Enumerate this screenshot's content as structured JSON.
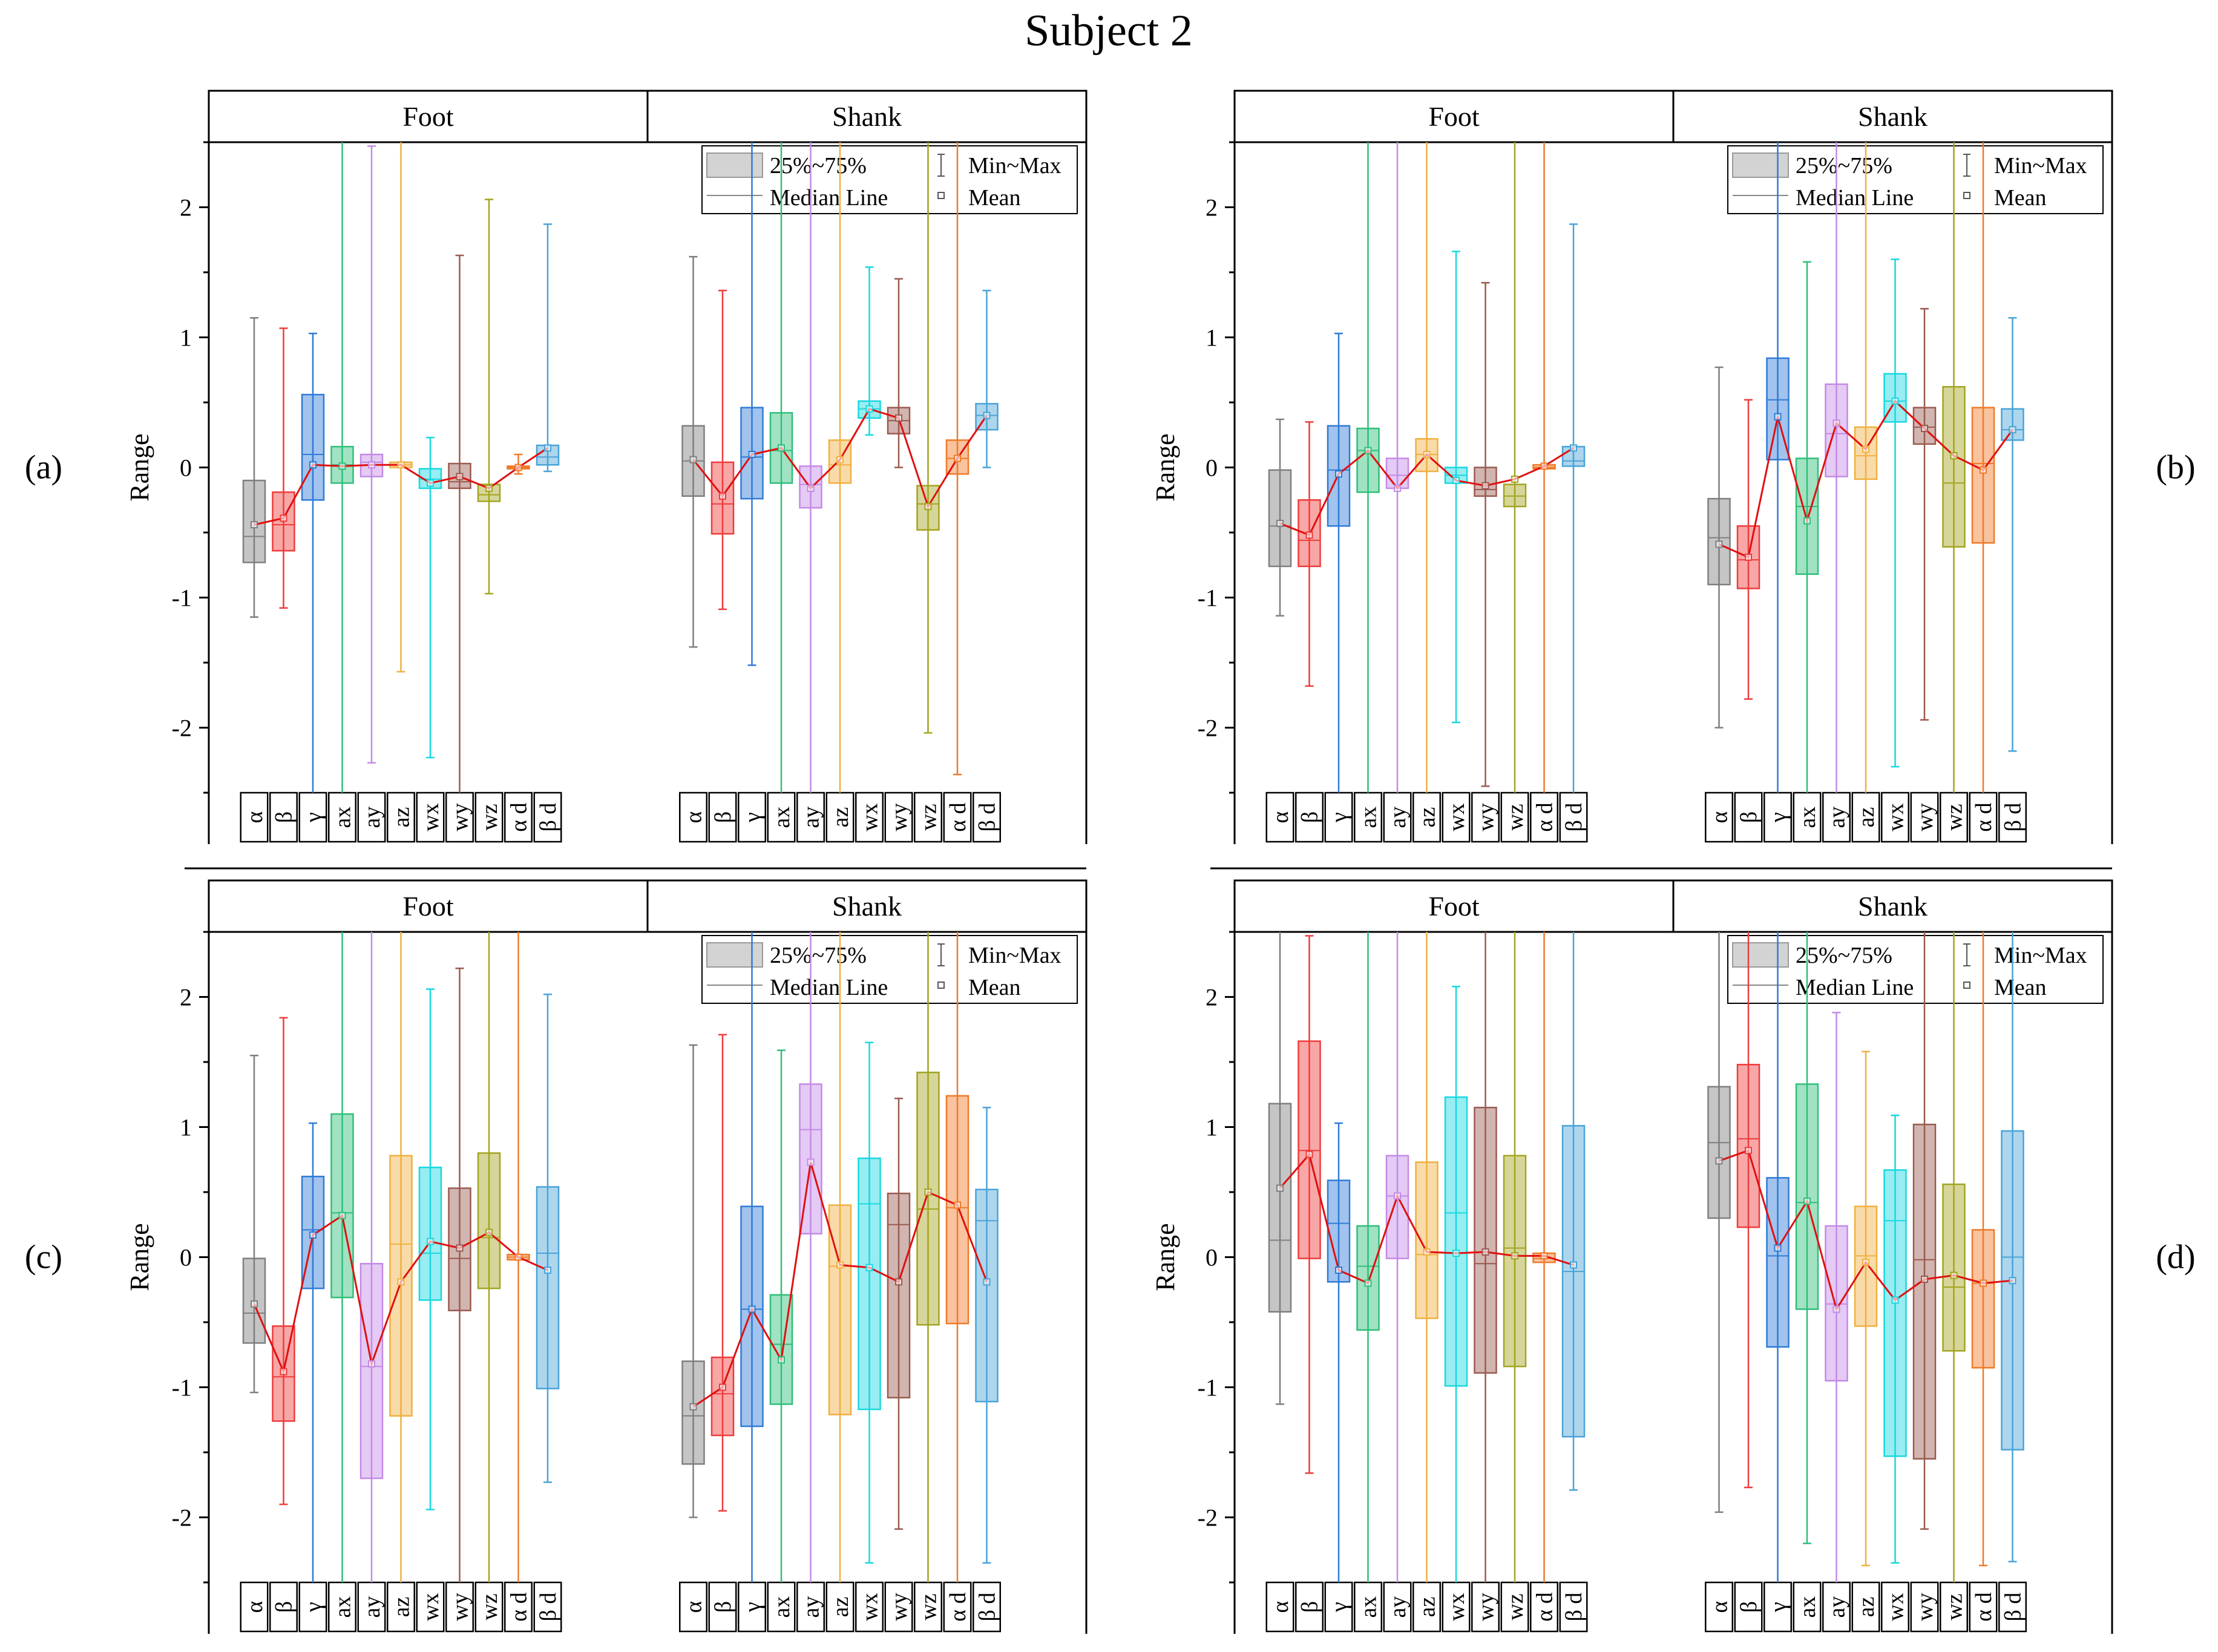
{
  "title": "Subject 2",
  "colors": {
    "alpha": "#7f7f7f",
    "beta": "#ef3b3b",
    "gamma": "#2f7bd6",
    "ax": "#2fbf7a",
    "ay": "#c48ae6",
    "az": "#f0b040",
    "wx": "#18d8e0",
    "wy": "#9a5a50",
    "wz": "#a3a420",
    "ad": "#f07a28",
    "bd": "#4aa3d8",
    "mean_line": "#e01010"
  },
  "chart_data": [
    {
      "id": "a",
      "panel_label": "(a)",
      "type": "box",
      "ylabel": "Range",
      "ylim": [
        -2.5,
        2.5
      ],
      "yticks": [
        -2,
        -1,
        0,
        1,
        2
      ],
      "groups": [
        "Foot",
        "Shank"
      ],
      "categories": [
        "α",
        "β",
        "γ",
        "ax",
        "ay",
        "az",
        "wx",
        "wy",
        "wz",
        "α d",
        "β d"
      ],
      "legend": {
        "box": "25%~75%",
        "whisker": "Min~Max",
        "median": "Median Line",
        "mean": "Mean"
      },
      "series": [
        {
          "group": "Foot",
          "q1": [
            -0.73,
            -0.64,
            -0.25,
            -0.12,
            -0.07,
            0.0,
            -0.16,
            -0.16,
            -0.26,
            -0.01,
            0.02
          ],
          "median": [
            -0.53,
            -0.44,
            0.1,
            0.02,
            0.04,
            0.02,
            -0.09,
            -0.11,
            -0.21,
            0.0,
            0.08
          ],
          "q3": [
            -0.1,
            -0.19,
            0.56,
            0.16,
            0.1,
            0.04,
            -0.01,
            0.03,
            -0.13,
            0.01,
            0.17
          ],
          "min": [
            -1.15,
            -1.08,
            -2.5,
            -2.5,
            -2.27,
            -1.57,
            -2.23,
            -2.5,
            -0.97,
            -0.05,
            -0.03
          ],
          "max": [
            1.15,
            1.07,
            1.03,
            2.5,
            2.47,
            2.5,
            0.23,
            1.63,
            2.06,
            0.1,
            1.87
          ],
          "mean": [
            -0.44,
            -0.39,
            0.02,
            0.01,
            0.02,
            0.02,
            -0.12,
            -0.07,
            -0.16,
            0.0,
            0.15
          ]
        },
        {
          "group": "Shank",
          "q1": [
            -0.22,
            -0.51,
            -0.24,
            -0.12,
            -0.31,
            -0.12,
            0.38,
            0.26,
            -0.48,
            -0.05,
            0.29
          ],
          "median": [
            0.05,
            -0.28,
            0.08,
            0.13,
            -0.13,
            0.02,
            0.45,
            0.36,
            -0.28,
            0.07,
            0.4
          ],
          "q3": [
            0.32,
            0.04,
            0.46,
            0.42,
            0.01,
            0.21,
            0.51,
            0.46,
            -0.14,
            0.21,
            0.49
          ],
          "min": [
            -1.38,
            -1.09,
            -1.52,
            -2.5,
            -2.5,
            -2.5,
            0.25,
            0.0,
            -2.04,
            -2.36,
            0.0
          ],
          "max": [
            1.62,
            1.36,
            2.5,
            2.5,
            2.5,
            2.5,
            1.54,
            1.45,
            2.5,
            2.5,
            1.36
          ],
          "mean": [
            0.06,
            -0.22,
            0.1,
            0.15,
            -0.16,
            0.06,
            0.45,
            0.38,
            -0.3,
            0.07,
            0.4
          ]
        }
      ]
    },
    {
      "id": "b",
      "panel_label": "(b)",
      "type": "box",
      "ylabel": "Range",
      "ylim": [
        -2.5,
        2.5
      ],
      "yticks": [
        -2,
        -1,
        0,
        1,
        2
      ],
      "groups": [
        "Foot",
        "Shank"
      ],
      "categories": [
        "α",
        "β",
        "γ",
        "ax",
        "ay",
        "az",
        "wx",
        "wy",
        "wz",
        "α d",
        "β d"
      ],
      "legend": {
        "box": "25%~75%",
        "whisker": "Min~Max",
        "median": "Median Line",
        "mean": "Mean"
      },
      "series": [
        {
          "group": "Foot",
          "q1": [
            -0.76,
            -0.76,
            -0.45,
            -0.19,
            -0.16,
            -0.03,
            -0.12,
            -0.22,
            -0.3,
            -0.01,
            0.01
          ],
          "median": [
            -0.45,
            -0.56,
            -0.02,
            0.13,
            -0.06,
            0.1,
            -0.06,
            -0.17,
            -0.22,
            0.0,
            0.05
          ],
          "q3": [
            -0.02,
            -0.25,
            0.32,
            0.3,
            0.07,
            0.22,
            0.0,
            0.0,
            -0.13,
            0.02,
            0.16
          ],
          "min": [
            -1.14,
            -1.68,
            -2.5,
            -2.5,
            -2.5,
            -2.5,
            -1.96,
            -2.45,
            -2.5,
            -2.5,
            -2.5
          ],
          "max": [
            0.37,
            0.35,
            1.03,
            2.5,
            2.5,
            2.5,
            1.66,
            1.42,
            2.5,
            2.5,
            1.87
          ],
          "mean": [
            -0.43,
            -0.52,
            -0.05,
            0.13,
            -0.16,
            0.1,
            -0.1,
            -0.14,
            -0.09,
            0.01,
            0.15
          ]
        },
        {
          "group": "Shank",
          "q1": [
            -0.9,
            -0.93,
            0.06,
            -0.82,
            -0.07,
            -0.09,
            0.35,
            0.18,
            -0.61,
            -0.58,
            0.21
          ],
          "median": [
            -0.54,
            -0.71,
            0.52,
            -0.3,
            0.26,
            0.09,
            0.51,
            0.31,
            -0.12,
            0.03,
            0.29
          ],
          "q3": [
            -0.24,
            -0.45,
            0.84,
            0.07,
            0.64,
            0.31,
            0.72,
            0.46,
            0.62,
            0.46,
            0.45
          ],
          "min": [
            -2.0,
            -1.78,
            -2.5,
            -2.5,
            -2.5,
            -2.5,
            -2.3,
            -1.94,
            -2.5,
            -2.5,
            -2.18
          ],
          "max": [
            0.77,
            0.52,
            2.5,
            1.58,
            2.5,
            2.5,
            1.6,
            1.22,
            2.5,
            2.5,
            1.15
          ],
          "mean": [
            -0.59,
            -0.69,
            0.39,
            -0.41,
            0.34,
            0.14,
            0.51,
            0.3,
            0.09,
            -0.02,
            0.29
          ]
        }
      ]
    },
    {
      "id": "c",
      "panel_label": "(c)",
      "type": "box",
      "ylabel": "Range",
      "ylim": [
        -2.5,
        2.5
      ],
      "yticks": [
        -2,
        -1,
        0,
        1,
        2
      ],
      "groups": [
        "Foot",
        "Shank"
      ],
      "categories": [
        "α",
        "β",
        "γ",
        "ax",
        "ay",
        "az",
        "wx",
        "wy",
        "wz",
        "α d",
        "β d"
      ],
      "legend": {
        "box": "25%~75%",
        "whisker": "Min~Max",
        "median": "Median Line",
        "mean": "Mean"
      },
      "series": [
        {
          "group": "Foot",
          "q1": [
            -0.66,
            -1.26,
            -0.24,
            -0.31,
            -1.7,
            -1.22,
            -0.33,
            -0.41,
            -0.24,
            -0.02,
            -1.01
          ],
          "median": [
            -0.43,
            -0.92,
            0.21,
            0.34,
            -0.84,
            0.1,
            0.03,
            -0.01,
            0.15,
            0.0,
            0.03
          ],
          "q3": [
            -0.01,
            -0.53,
            0.62,
            1.1,
            -0.05,
            0.78,
            0.69,
            0.53,
            0.8,
            0.02,
            0.54
          ],
          "min": [
            -1.04,
            -1.9,
            -2.5,
            -2.5,
            -2.5,
            -2.5,
            -1.94,
            -2.5,
            -2.5,
            -2.5,
            -1.73
          ],
          "max": [
            1.55,
            1.84,
            1.03,
            2.5,
            2.5,
            2.5,
            2.06,
            2.22,
            2.5,
            2.5,
            2.02
          ],
          "mean": [
            -0.36,
            -0.88,
            0.17,
            0.32,
            -0.82,
            -0.19,
            0.12,
            0.07,
            0.19,
            0.0,
            -0.1
          ]
        },
        {
          "group": "Shank",
          "q1": [
            -1.59,
            -1.37,
            -1.3,
            -1.13,
            0.18,
            -1.21,
            -1.17,
            -1.08,
            -0.52,
            -0.51,
            -1.11
          ],
          "median": [
            -1.22,
            -1.05,
            -0.4,
            -0.67,
            0.98,
            -0.07,
            0.41,
            0.25,
            0.37,
            0.38,
            0.28
          ],
          "q3": [
            -0.8,
            -0.77,
            0.39,
            -0.29,
            1.33,
            0.4,
            0.76,
            0.49,
            1.42,
            1.24,
            0.52
          ],
          "min": [
            -2.0,
            -1.95,
            -2.5,
            -2.5,
            -2.5,
            -2.5,
            -2.35,
            -2.09,
            -2.5,
            -2.5,
            -2.35
          ],
          "max": [
            1.63,
            1.71,
            2.5,
            1.59,
            2.5,
            2.5,
            1.65,
            1.22,
            2.5,
            2.5,
            1.15
          ],
          "mean": [
            -1.15,
            -1.0,
            -0.4,
            -0.79,
            0.73,
            -0.06,
            -0.08,
            -0.19,
            0.5,
            0.4,
            -0.19
          ]
        }
      ]
    },
    {
      "id": "d",
      "panel_label": "(d)",
      "type": "box",
      "ylabel": "Range",
      "ylim": [
        -2.5,
        2.5
      ],
      "yticks": [
        -2,
        -1,
        0,
        1,
        2
      ],
      "groups": [
        "Foot",
        "Shank"
      ],
      "categories": [
        "α",
        "β",
        "γ",
        "ax",
        "ay",
        "az",
        "wx",
        "wy",
        "wz",
        "α d",
        "β d"
      ],
      "legend": {
        "box": "25%~75%",
        "whisker": "Min~Max",
        "median": "Median Line",
        "mean": "Mean"
      },
      "series": [
        {
          "group": "Foot",
          "q1": [
            -0.42,
            -0.01,
            -0.19,
            -0.56,
            -0.01,
            -0.47,
            -0.99,
            -0.89,
            -0.84,
            -0.04,
            -1.38
          ],
          "median": [
            0.13,
            0.82,
            0.26,
            -0.07,
            0.47,
            0.02,
            0.34,
            -0.05,
            0.07,
            -0.01,
            -0.11
          ],
          "q3": [
            1.18,
            1.66,
            0.59,
            0.24,
            0.78,
            0.73,
            1.23,
            1.15,
            0.78,
            0.03,
            1.01
          ],
          "min": [
            -1.13,
            -1.66,
            -2.5,
            -2.5,
            -2.5,
            -2.5,
            -2.5,
            -2.5,
            -2.5,
            -2.5,
            -1.79
          ],
          "max": [
            2.5,
            2.47,
            1.03,
            2.5,
            2.5,
            2.5,
            2.08,
            2.5,
            2.5,
            2.5,
            2.5
          ],
          "mean": [
            0.53,
            0.79,
            -0.1,
            -0.2,
            0.47,
            0.04,
            0.03,
            0.04,
            0.01,
            0.01,
            -0.06
          ]
        },
        {
          "group": "Shank",
          "q1": [
            0.3,
            0.23,
            -0.69,
            -0.4,
            -0.95,
            -0.53,
            -1.53,
            -1.55,
            -0.72,
            -0.85,
            -1.48
          ],
          "median": [
            0.88,
            0.91,
            0.01,
            0.42,
            -0.36,
            0.01,
            0.28,
            -0.02,
            -0.23,
            -0.2,
            0.0
          ],
          "q3": [
            1.31,
            1.48,
            0.61,
            1.33,
            0.24,
            0.39,
            0.67,
            1.02,
            0.56,
            0.21,
            0.97
          ],
          "min": [
            -1.96,
            -1.77,
            -2.5,
            -2.2,
            -2.5,
            -2.37,
            -2.35,
            -2.09,
            -2.5,
            -2.37,
            -2.34
          ],
          "max": [
            2.5,
            2.5,
            2.5,
            2.5,
            1.88,
            1.58,
            1.09,
            2.5,
            2.5,
            2.5,
            2.5
          ],
          "mean": [
            0.74,
            0.82,
            0.07,
            0.43,
            -0.4,
            -0.04,
            -0.33,
            -0.17,
            -0.14,
            -0.2,
            -0.18
          ]
        }
      ]
    }
  ]
}
